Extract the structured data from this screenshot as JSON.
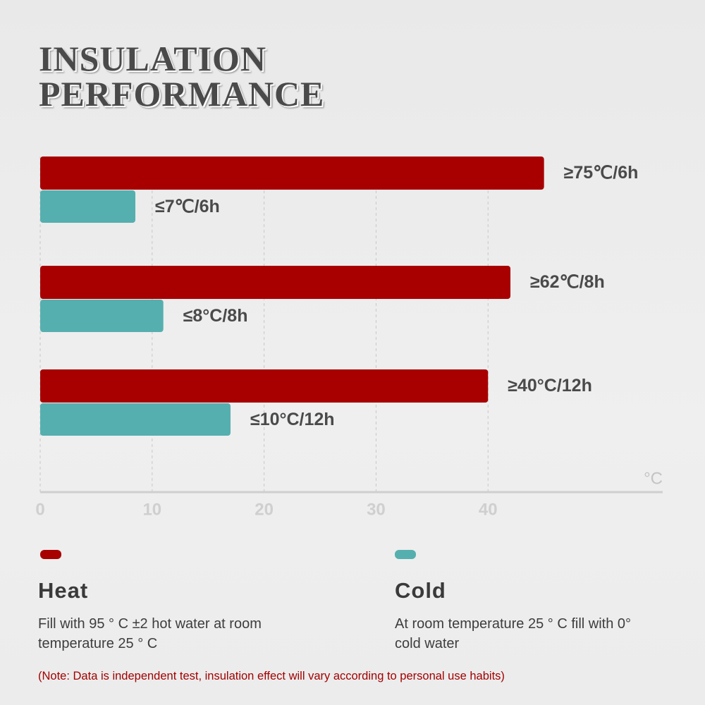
{
  "chart_data": {
    "type": "bar",
    "title": "INSULATION\nPERFORMANCE",
    "categories": [
      null,
      null,
      null
    ],
    "series": [
      {
        "name": "Heat",
        "color": "#a80000",
        "values": [
          45,
          42,
          40
        ],
        "labels": [
          "≥75℃/6h",
          "≥62℃/8h",
          "≥40°C/12h"
        ],
        "description": "Fill with 95 ° C ±2 hot water at room temperature 25 ° C"
      },
      {
        "name": "Cold",
        "color": "#56afaf",
        "values": [
          8.5,
          11,
          17
        ],
        "labels": [
          "≤7℃/6h",
          "≤8°C/8h",
          "≤10°C/12h"
        ],
        "description": "At room temperature 25 ° C fill with 0° cold water"
      }
    ],
    "xlim": [
      0,
      55.6
    ],
    "xticks": [
      0,
      10,
      20,
      30,
      40
    ],
    "x_unit": "°C",
    "grid": true,
    "note": "(Note: Data is independent test, insulation effect will vary according to personal use habits)"
  }
}
